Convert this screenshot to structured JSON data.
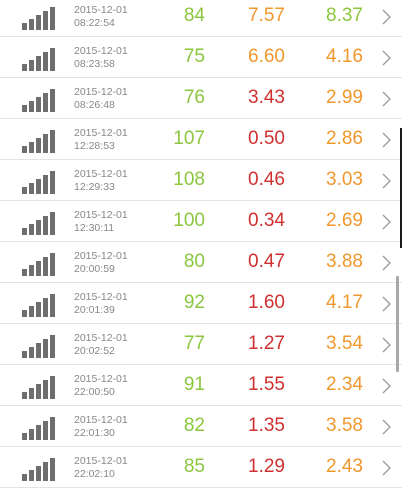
{
  "colors": {
    "green": "#8cc63f",
    "orange": "#f0982d",
    "red": "#cf3030",
    "bars": "#6e6e6e",
    "chevron": "#9a9a9a",
    "divider": "#e3e3e3"
  },
  "rows": [
    {
      "date": "2015-12-01",
      "time": "08:22:54",
      "v1": "84",
      "v1_color": "green",
      "v2": "7.57",
      "v2_color": "orange",
      "v3": "8.37",
      "v3_color": "green"
    },
    {
      "date": "2015-12-01",
      "time": "08:23:58",
      "v1": "75",
      "v1_color": "green",
      "v2": "6.60",
      "v2_color": "orange",
      "v3": "4.16",
      "v3_color": "orange"
    },
    {
      "date": "2015-12-01",
      "time": "08:26:48",
      "v1": "76",
      "v1_color": "green",
      "v2": "3.43",
      "v2_color": "red",
      "v3": "2.99",
      "v3_color": "orange"
    },
    {
      "date": "2015-12-01",
      "time": "12:28:53",
      "v1": "107",
      "v1_color": "green",
      "v2": "0.50",
      "v2_color": "red",
      "v3": "2.86",
      "v3_color": "orange"
    },
    {
      "date": "2015-12-01",
      "time": "12:29:33",
      "v1": "108",
      "v1_color": "green",
      "v2": "0.46",
      "v2_color": "red",
      "v3": "3.03",
      "v3_color": "orange"
    },
    {
      "date": "2015-12-01",
      "time": "12:30:11",
      "v1": "100",
      "v1_color": "green",
      "v2": "0.34",
      "v2_color": "red",
      "v3": "2.69",
      "v3_color": "orange"
    },
    {
      "date": "2015-12-01",
      "time": "20:00:59",
      "v1": "80",
      "v1_color": "green",
      "v2": "0.47",
      "v2_color": "red",
      "v3": "3.88",
      "v3_color": "orange"
    },
    {
      "date": "2015-12-01",
      "time": "20:01:39",
      "v1": "92",
      "v1_color": "green",
      "v2": "1.60",
      "v2_color": "red",
      "v3": "4.17",
      "v3_color": "orange"
    },
    {
      "date": "2015-12-01",
      "time": "20:02:52",
      "v1": "77",
      "v1_color": "green",
      "v2": "1.27",
      "v2_color": "red",
      "v3": "3.54",
      "v3_color": "orange"
    },
    {
      "date": "2015-12-01",
      "time": "22:00:50",
      "v1": "91",
      "v1_color": "green",
      "v2": "1.55",
      "v2_color": "red",
      "v3": "2.34",
      "v3_color": "orange"
    },
    {
      "date": "2015-12-01",
      "time": "22:01:30",
      "v1": "82",
      "v1_color": "green",
      "v2": "1.35",
      "v2_color": "red",
      "v3": "3.58",
      "v3_color": "orange"
    },
    {
      "date": "2015-12-01",
      "time": "22:02:10",
      "v1": "85",
      "v1_color": "green",
      "v2": "1.29",
      "v2_color": "red",
      "v3": "2.43",
      "v3_color": "orange"
    }
  ],
  "icons": {
    "row_icon": "signal-bars-icon",
    "row_arrow": "chevron-right-icon"
  }
}
